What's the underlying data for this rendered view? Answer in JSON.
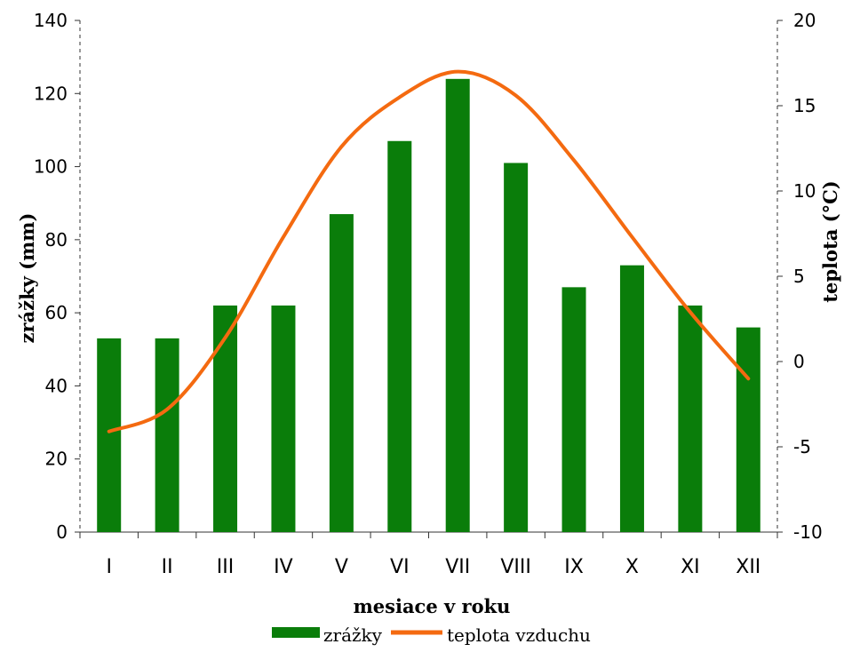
{
  "chart_data": {
    "type": "bar",
    "categories": [
      "I",
      "II",
      "III",
      "IV",
      "V",
      "VI",
      "VII",
      "VIII",
      "IX",
      "X",
      "XI",
      "XII"
    ],
    "series": [
      {
        "name": "zrážky",
        "type": "bar",
        "axis": "left",
        "color": "#0a7d0a",
        "values": [
          53,
          53,
          62,
          62,
          87,
          107,
          124,
          101,
          67,
          73,
          62,
          56
        ]
      },
      {
        "name": "teplota vzduchu",
        "type": "line",
        "axis": "right",
        "color": "#f46a10",
        "values": [
          -4.1,
          -2.8,
          1.4,
          7.3,
          12.6,
          15.5,
          17.0,
          15.6,
          11.8,
          7.3,
          2.9,
          -1.0
        ]
      }
    ],
    "xlabel": "mesiace v roku",
    "ylabel": "zrážky (mm)",
    "y2label": "teplota (°C)",
    "ylim": [
      0,
      140
    ],
    "yticks": [
      "0",
      "20",
      "40",
      "60",
      "80",
      "100",
      "120",
      "140"
    ],
    "y2lim": [
      -10,
      20
    ],
    "y2ticks": [
      "-10",
      "-5",
      "0",
      "5",
      "10",
      "15",
      "20"
    ],
    "grid": false,
    "legend_position": "bottom"
  }
}
